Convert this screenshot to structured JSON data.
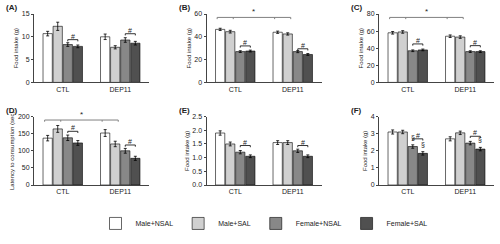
{
  "chart_data": [
    {
      "type": "bar",
      "title": "(A)",
      "ylabel": "Food intake (g)",
      "categories": [
        "CTL",
        "DEP11"
      ],
      "series": [
        {
          "name": "Male+NSAL",
          "color": "#ffffff",
          "values": [
            10.7,
            10.0
          ],
          "errors": [
            0.5,
            0.6
          ]
        },
        {
          "name": "Male+SAL",
          "color": "#d0d0d0",
          "values": [
            12.3,
            7.7
          ],
          "errors": [
            0.9,
            0.35
          ]
        },
        {
          "name": "Female+NSAL",
          "color": "#888888",
          "values": [
            8.3,
            9.3
          ],
          "errors": [
            0.4,
            0.5
          ]
        },
        {
          "name": "Female+SAL",
          "color": "#505050",
          "values": [
            7.9,
            8.6
          ],
          "errors": [
            0.3,
            0.4
          ]
        }
      ],
      "ylim": [
        0,
        15
      ],
      "yticks": [
        0,
        5,
        10,
        15
      ],
      "grid": false,
      "legend": "bottom",
      "annotations": [
        {
          "type": "bracket",
          "text": "#",
          "category": "CTL",
          "series": [
            "Female+NSAL",
            "Female+SAL"
          ],
          "y": 9.0
        },
        {
          "type": "bracket",
          "text": "#",
          "category": "DEP11",
          "series": [
            "Female+NSAL",
            "Female+SAL"
          ],
          "y": 10.3
        }
      ]
    },
    {
      "type": "bar",
      "title": "(B)",
      "ylabel": "Food intake (g)",
      "categories": [
        "CTL",
        "DEP11"
      ],
      "series": [
        {
          "name": "Male+NSAL",
          "color": "#ffffff",
          "values": [
            46.5,
            44.0
          ],
          "errors": [
            1.0,
            1.0
          ]
        },
        {
          "name": "Male+SAL",
          "color": "#d0d0d0",
          "values": [
            44.5,
            42.5
          ],
          "errors": [
            1.2,
            1.0
          ]
        },
        {
          "name": "Female+NSAL",
          "color": "#888888",
          "values": [
            27.0,
            27.0
          ],
          "errors": [
            0.8,
            0.9
          ]
        },
        {
          "name": "Female+SAL",
          "color": "#505050",
          "values": [
            27.5,
            24.5
          ],
          "errors": [
            0.8,
            0.8
          ]
        }
      ],
      "ylim": [
        0,
        60
      ],
      "yticks": [
        0,
        20,
        40,
        60
      ],
      "grid": false,
      "legend": "bottom",
      "annotations": [
        {
          "type": "bracket",
          "text": "#",
          "category": "CTL",
          "series": [
            "Female+NSAL",
            "Female+SAL"
          ],
          "y": 30.5
        },
        {
          "type": "bracket",
          "text": "#",
          "category": "DEP11",
          "series": [
            "Female+NSAL",
            "Female+SAL"
          ],
          "y": 28.0
        },
        {
          "type": "span",
          "text": "*",
          "categories": [
            "CTL",
            "DEP11"
          ],
          "series": [
            "Male+NSAL",
            "Male+SAL"
          ],
          "y": 57
        }
      ]
    },
    {
      "type": "bar",
      "title": "(C)",
      "ylabel": "Food intake (g)",
      "categories": [
        "CTL",
        "DEP11"
      ],
      "series": [
        {
          "name": "Male+NSAL",
          "color": "#ffffff",
          "values": [
            58.0,
            54.0
          ],
          "errors": [
            1.5,
            1.5
          ]
        },
        {
          "name": "Male+SAL",
          "color": "#d0d0d0",
          "values": [
            59.0,
            53.0
          ],
          "errors": [
            1.5,
            1.5
          ]
        },
        {
          "name": "Female+NSAL",
          "color": "#888888",
          "values": [
            37.0,
            36.0
          ],
          "errors": [
            1.0,
            1.0
          ]
        },
        {
          "name": "Female+SAL",
          "color": "#505050",
          "values": [
            38.0,
            36.0
          ],
          "errors": [
            1.0,
            1.0
          ]
        }
      ],
      "ylim": [
        0,
        80
      ],
      "yticks": [
        0,
        20,
        40,
        60,
        80
      ],
      "grid": false,
      "legend": "bottom",
      "annotations": [
        {
          "type": "bracket",
          "text": "#",
          "category": "CTL",
          "series": [
            "Female+NSAL",
            "Female+SAL"
          ],
          "y": 43.0
        },
        {
          "type": "bracket",
          "text": "#",
          "category": "DEP11",
          "series": [
            "Female+NSAL",
            "Female+SAL"
          ],
          "y": 41.0
        },
        {
          "type": "span",
          "text": "*",
          "categories": [
            "CTL",
            "DEP11"
          ],
          "series": [
            "Male+NSAL",
            "Male+SAL"
          ],
          "y": 76
        }
      ]
    },
    {
      "type": "bar",
      "title": "(D)",
      "ylabel": "Latency to consumption (sec)",
      "categories": [
        "CTL",
        "DEP11"
      ],
      "series": [
        {
          "name": "Male+NSAL",
          "color": "#ffffff",
          "values": [
            137,
            152
          ],
          "errors": [
            8,
            10
          ]
        },
        {
          "name": "Male+SAL",
          "color": "#d0d0d0",
          "values": [
            164,
            120
          ],
          "errors": [
            10,
            8
          ]
        },
        {
          "name": "Female+NSAL",
          "color": "#888888",
          "values": [
            138,
            100
          ],
          "errors": [
            8,
            7
          ]
        },
        {
          "name": "Female+SAL",
          "color": "#505050",
          "values": [
            123,
            78
          ],
          "errors": [
            7,
            6
          ]
        }
      ],
      "ylim": [
        0,
        200
      ],
      "yticks": [
        0,
        50,
        100,
        150,
        200
      ],
      "grid": false,
      "legend": "bottom",
      "annotations": [
        {
          "type": "bracket",
          "text": "#",
          "category": "CTL",
          "series": [
            "Female+NSAL",
            "Female+SAL"
          ],
          "y": 152
        },
        {
          "type": "bracket",
          "text": "#",
          "category": "DEP11",
          "series": [
            "Female+NSAL",
            "Female+SAL"
          ],
          "y": 112
        },
        {
          "type": "span",
          "text": "*",
          "categories": [
            "CTL",
            "DEP11"
          ],
          "series": [
            "Male+NSAL",
            "Male+SAL"
          ],
          "y": 190
        }
      ]
    },
    {
      "type": "bar",
      "title": "(E)",
      "ylabel": "Food intake (g)",
      "categories": [
        "CTL",
        "DEP11"
      ],
      "series": [
        {
          "name": "Male+NSAL",
          "color": "#ffffff",
          "values": [
            1.9,
            1.55
          ],
          "errors": [
            0.08,
            0.07
          ]
        },
        {
          "name": "Male+SAL",
          "color": "#d0d0d0",
          "values": [
            1.5,
            1.55
          ],
          "errors": [
            0.07,
            0.07
          ]
        },
        {
          "name": "Female+NSAL",
          "color": "#888888",
          "values": [
            1.2,
            1.25
          ],
          "errors": [
            0.06,
            0.06
          ]
        },
        {
          "name": "Female+SAL",
          "color": "#505050",
          "values": [
            1.05,
            1.05
          ],
          "errors": [
            0.05,
            0.05
          ]
        }
      ],
      "ylim": [
        0,
        2.5
      ],
      "yticks": [
        {
          "value": 0,
          "label": "0.0"
        },
        0.5,
        {
          "value": 1,
          "label": "1.0"
        },
        1.5,
        {
          "value": 2,
          "label": "2.0"
        },
        2.5
      ],
      "grid": false,
      "legend": "bottom",
      "annotations": [
        {
          "type": "bracket",
          "text": "#",
          "category": "CTL",
          "series": [
            "Female+NSAL",
            "Female+SAL"
          ],
          "y": 1.38
        },
        {
          "type": "bracket",
          "text": "#",
          "category": "DEP11",
          "series": [
            "Female+NSAL",
            "Female+SAL"
          ],
          "y": 1.38
        }
      ]
    },
    {
      "type": "bar",
      "title": "(F)",
      "ylabel": "Food intake (g)",
      "categories": [
        "CTL",
        "DEP11"
      ],
      "series": [
        {
          "name": "Male+NSAL",
          "color": "#ffffff",
          "values": [
            3.1,
            2.7
          ],
          "errors": [
            0.12,
            0.12
          ]
        },
        {
          "name": "Male+SAL",
          "color": "#d0d0d0",
          "values": [
            3.1,
            3.05
          ],
          "errors": [
            0.1,
            0.1
          ]
        },
        {
          "name": "Female+NSAL",
          "color": "#888888",
          "values": [
            2.25,
            2.45
          ],
          "errors": [
            0.1,
            0.1
          ]
        },
        {
          "name": "Female+SAL",
          "color": "#505050",
          "values": [
            1.85,
            2.1
          ],
          "errors": [
            0.1,
            0.1
          ]
        }
      ],
      "ylim": [
        0,
        4
      ],
      "yticks": [
        0,
        1,
        2,
        3,
        4
      ],
      "grid": false,
      "legend": "bottom",
      "annotations": [
        {
          "type": "bracket",
          "text": "#",
          "category": "CTL",
          "series": [
            "Female+NSAL",
            "Female+SAL"
          ],
          "y": 2.6
        },
        {
          "type": "bracket",
          "text": "#",
          "category": "DEP11",
          "series": [
            "Female+NSAL",
            "Female+SAL"
          ],
          "y": 2.75
        },
        {
          "type": "marker",
          "text": "§",
          "category": "CTL",
          "series": "Female+SAL"
        },
        {
          "type": "marker",
          "text": "§",
          "category": "CTL",
          "series": "Female+NSAL"
        },
        {
          "type": "marker",
          "text": "§",
          "category": "DEP11",
          "series": "Female+SAL"
        }
      ]
    }
  ]
}
